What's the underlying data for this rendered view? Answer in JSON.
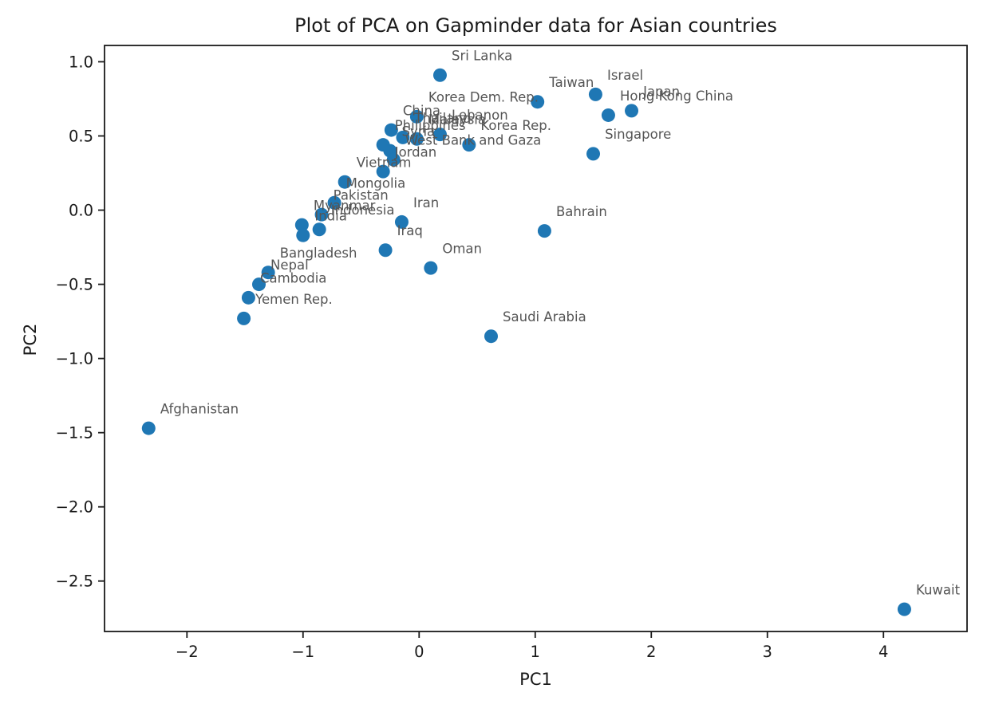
{
  "figure": {
    "title": "Plot of PCA on Gapminder data for Asian countries",
    "xlabel": "PC1",
    "ylabel": "PC2"
  },
  "chart_data": {
    "type": "scatter",
    "title": "Plot of PCA on Gapminder data for Asian countries",
    "xlabel": "PC1",
    "ylabel": "PC2",
    "xlim": [
      -2.71,
      4.72
    ],
    "ylim": [
      -2.84,
      1.11
    ],
    "xticks": [
      -2,
      -1,
      0,
      1,
      2,
      3,
      4
    ],
    "yticks": [
      1.0,
      0.5,
      0.0,
      -0.5,
      -1.0,
      -1.5,
      -2.0,
      -2.5
    ],
    "grid": false,
    "legend": "none",
    "marker_color": "#1f77b4",
    "marker_radius": 8.5,
    "annotation_color": "#555555",
    "axis_color": "#1a1a1a",
    "label_offset": [
      0.1,
      0.1
    ],
    "points": [
      {
        "country": "Sri Lanka",
        "pc1": 0.18,
        "pc2": 0.91
      },
      {
        "country": "Taiwan",
        "pc1": 1.02,
        "pc2": 0.73
      },
      {
        "country": "Israel",
        "pc1": 1.52,
        "pc2": 0.78
      },
      {
        "country": "Hong Kong China",
        "pc1": 1.63,
        "pc2": 0.64
      },
      {
        "country": "Japan",
        "pc1": 1.83,
        "pc2": 0.67
      },
      {
        "country": "Singapore",
        "pc1": 1.5,
        "pc2": 0.38
      },
      {
        "country": "Korea Dem. Rep.",
        "pc1": -0.02,
        "pc2": 0.63
      },
      {
        "country": "China",
        "pc1": -0.24,
        "pc2": 0.54
      },
      {
        "country": "Lebanon",
        "pc1": 0.18,
        "pc2": 0.51
      },
      {
        "country": "Malaysia",
        "pc1": -0.02,
        "pc2": 0.48
      },
      {
        "country": "Thailand",
        "pc1": -0.14,
        "pc2": 0.49
      },
      {
        "country": "Philippines",
        "pc1": -0.31,
        "pc2": 0.44
      },
      {
        "country": "Syria",
        "pc1": -0.25,
        "pc2": 0.4
      },
      {
        "country": "Korea Rep.",
        "pc1": 0.43,
        "pc2": 0.44
      },
      {
        "country": "West Bank and Gaza",
        "pc1": -0.22,
        "pc2": 0.34
      },
      {
        "country": "Jordan",
        "pc1": -0.31,
        "pc2": 0.26
      },
      {
        "country": "Vietnam",
        "pc1": -0.64,
        "pc2": 0.19
      },
      {
        "country": "Mongolia",
        "pc1": -0.73,
        "pc2": 0.05
      },
      {
        "country": "Pakistan",
        "pc1": -0.84,
        "pc2": -0.03
      },
      {
        "country": "Iran",
        "pc1": -0.15,
        "pc2": -0.08
      },
      {
        "country": "Myanmar",
        "pc1": -1.01,
        "pc2": -0.1
      },
      {
        "country": "Indonesia",
        "pc1": -0.86,
        "pc2": -0.13
      },
      {
        "country": "India",
        "pc1": -1.0,
        "pc2": -0.17
      },
      {
        "country": "Iraq",
        "pc1": -0.29,
        "pc2": -0.27
      },
      {
        "country": "Oman",
        "pc1": 0.1,
        "pc2": -0.39
      },
      {
        "country": "Bahrain",
        "pc1": 1.08,
        "pc2": -0.14
      },
      {
        "country": "Bangladesh",
        "pc1": -1.3,
        "pc2": -0.42
      },
      {
        "country": "Nepal",
        "pc1": -1.38,
        "pc2": -0.5
      },
      {
        "country": "Cambodia",
        "pc1": -1.47,
        "pc2": -0.59
      },
      {
        "country": "Yemen Rep.",
        "pc1": -1.51,
        "pc2": -0.73
      },
      {
        "country": "Saudi Arabia",
        "pc1": 0.62,
        "pc2": -0.85
      },
      {
        "country": "Afghanistan",
        "pc1": -2.33,
        "pc2": -1.47
      },
      {
        "country": "Kuwait",
        "pc1": 4.18,
        "pc2": -2.69
      }
    ]
  }
}
